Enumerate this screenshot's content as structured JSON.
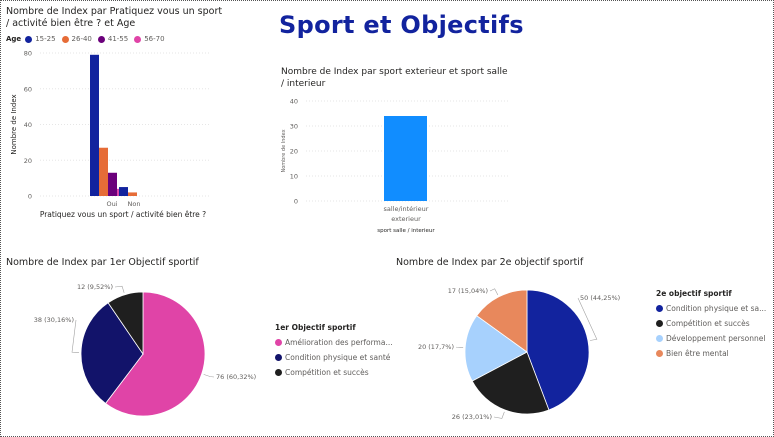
{
  "page_title": "Sport et Objectifs",
  "chart1": {
    "title_line1": "Nombre de Index par Pratiquez vous un sport",
    "title_line2": "/ activité bien être ? et Age",
    "legend_title": "Age",
    "ylabel": "Nombre de Index",
    "xlabel": "Pratiquez vous un sport / activité bien être ?",
    "ticks": [
      "0",
      "20",
      "40",
      "60",
      "80"
    ],
    "categories": [
      "Oui",
      "Non"
    ]
  },
  "chart2": {
    "title_line1": "Nombre de Index par sport exterieur et sport salle",
    "title_line2": "/ interieur",
    "ylabel": "Nombre de Index",
    "xlabel": "sport salle / interieur",
    "ticks": [
      "0",
      "10",
      "20",
      "30",
      "40"
    ],
    "category_line1": "salle/intérieur",
    "category_line2": "exterieur"
  },
  "chart3": {
    "title": "Nombre de Index par 1er Objectif sportif",
    "legend_title": "1er Objectif sportif",
    "legend_items": [
      "Amélioration des performa...",
      "Condition physique et santé",
      "Compétition et succès"
    ],
    "labels": [
      "76 (60,32%)",
      "38 (30,16%)",
      "12 (9,52%)"
    ]
  },
  "chart4": {
    "title": "Nombre de Index par 2e objectif sportif",
    "legend_title": "2e objectif sportif",
    "legend_items": [
      "Condition physique et sa...",
      "Compétition et succès",
      "Développement personnel",
      "Bien être mental"
    ],
    "labels": [
      "50 (44,25%)",
      "26 (23,01%)",
      "20 (17,7%)",
      "17 (15,04%)"
    ]
  },
  "chart_data": [
    {
      "type": "bar",
      "title": "Nombre de Index par Pratiquez vous un sport / activité bien être ? et Age",
      "xlabel": "Pratiquez vous un sport / activité bien être ?",
      "ylabel": "Nombre de Index",
      "categories": [
        "Oui",
        "Non"
      ],
      "ylim": [
        0,
        80
      ],
      "legend_position": "top-left",
      "series": [
        {
          "name": "15-25",
          "color": "#12239E",
          "values": [
            79,
            5
          ]
        },
        {
          "name": "26-40",
          "color": "#E66C37",
          "values": [
            27,
            2
          ]
        },
        {
          "name": "41-55",
          "color": "#6B007B",
          "values": [
            13,
            0
          ]
        },
        {
          "name": "56-70",
          "color": "#E044A7",
          "values": [
            4,
            0
          ]
        }
      ]
    },
    {
      "type": "bar",
      "title": "Nombre de Index par sport exterieur et sport salle / interieur",
      "xlabel": "sport salle / interieur",
      "ylabel": "Nombre de Index",
      "categories": [
        "salle/intérieur exterieur"
      ],
      "ylim": [
        0,
        40
      ],
      "series": [
        {
          "color": "#118DFF",
          "values": [
            34
          ]
        }
      ]
    },
    {
      "type": "pie",
      "title": "Nombre de Index par 1er Objectif sportif",
      "legend_position": "right",
      "categories": [
        "Amélioration des performa...",
        "Condition physique et santé",
        "Compétition et succès"
      ],
      "values": [
        76,
        38,
        12
      ],
      "colors": [
        "#E044A7",
        "#12136A",
        "#1F1F1F"
      ]
    },
    {
      "type": "pie",
      "title": "Nombre de Index par 2e objectif sportif",
      "legend_position": "right",
      "categories": [
        "Condition physique et sa...",
        "Compétition et succès",
        "Développement personnel",
        "Bien être mental"
      ],
      "values": [
        50,
        26,
        20,
        17
      ],
      "colors": [
        "#12239E",
        "#1F1F1F",
        "#A7D1FD",
        "#E8885C"
      ]
    }
  ]
}
